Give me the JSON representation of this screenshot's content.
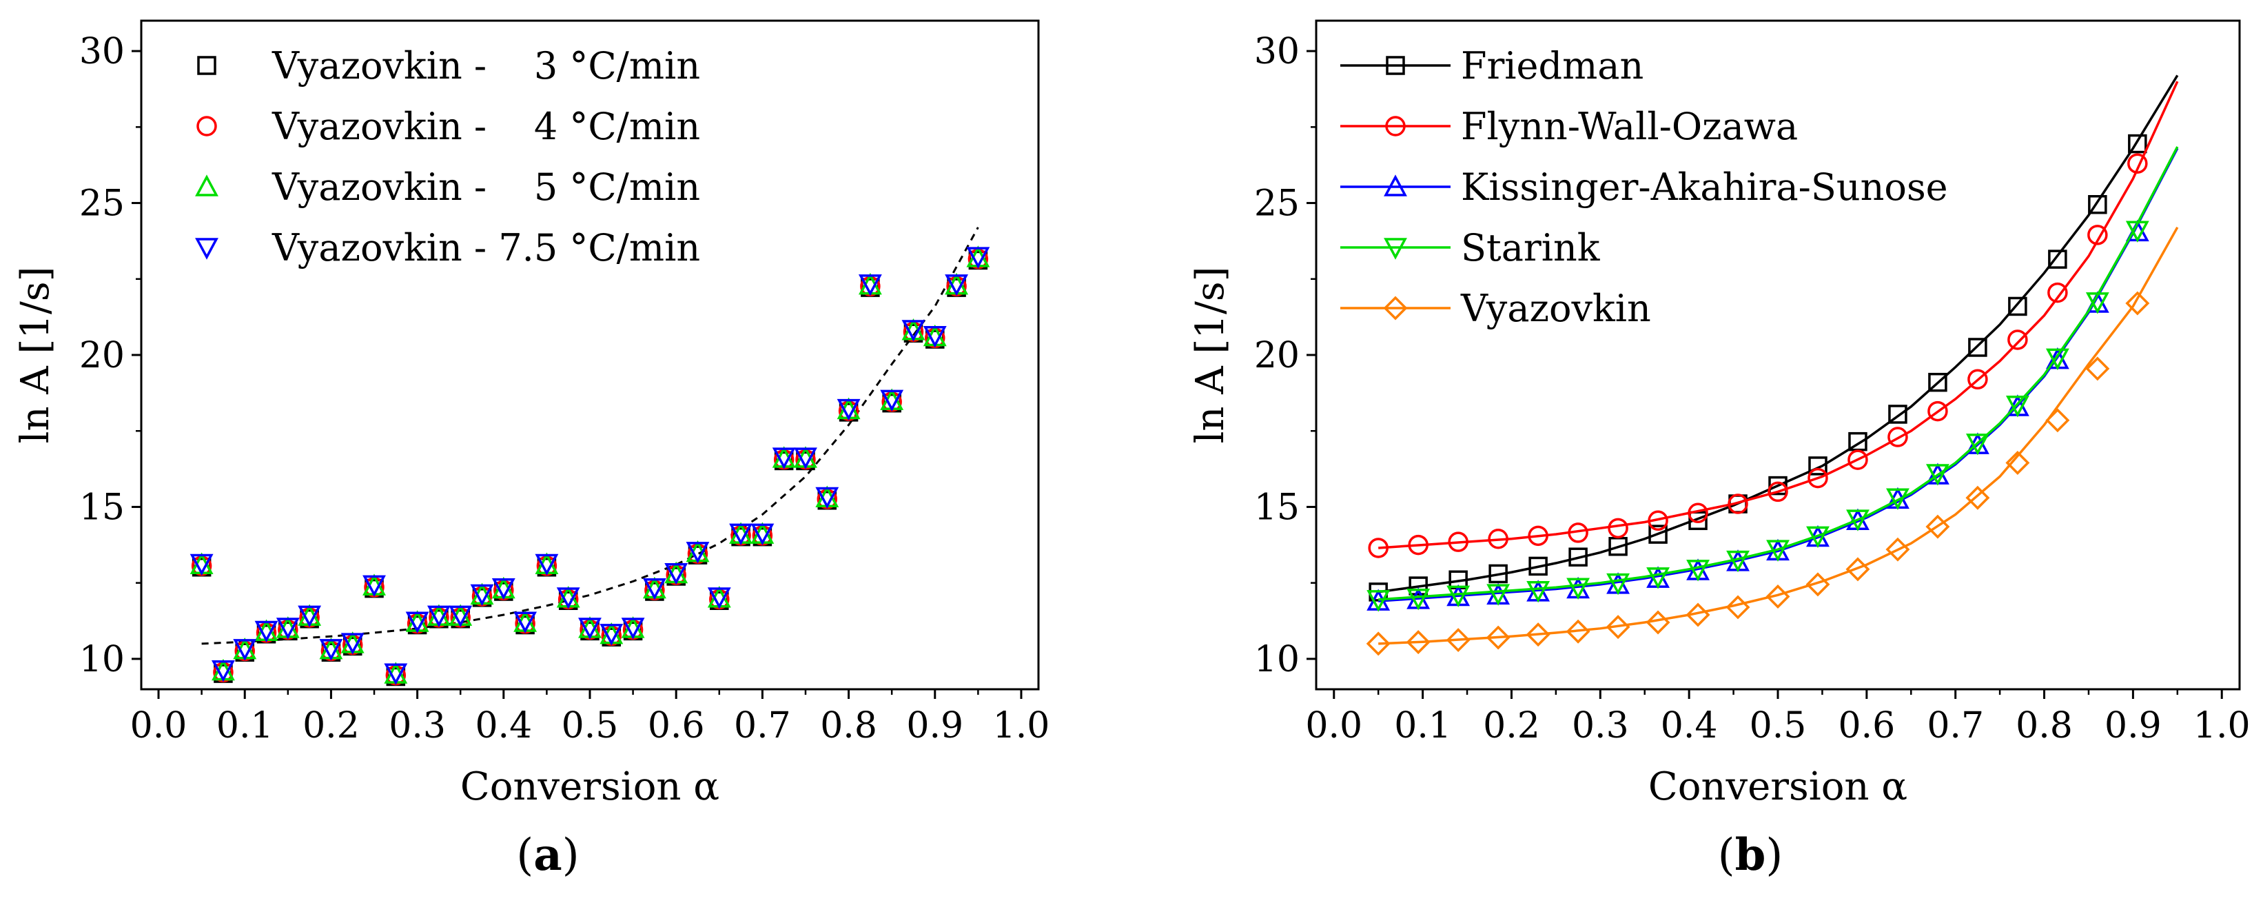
{
  "chart_data": [
    {
      "id": "a",
      "type": "scatter",
      "caption": "(a)",
      "caption_letter": "a",
      "xlabel": "Conversion α",
      "ylabel": "ln A [1/s]",
      "xlim": [
        -0.02,
        1.02
      ],
      "ylim": [
        9,
        31
      ],
      "xticks": [
        "0.0",
        "0.1",
        "0.2",
        "0.3",
        "0.4",
        "0.5",
        "0.6",
        "0.7",
        "0.8",
        "0.9",
        "1.0"
      ],
      "xtick_values": [
        0,
        0.1,
        0.2,
        0.3,
        0.4,
        0.5,
        0.6,
        0.7,
        0.8,
        0.9,
        1.0
      ],
      "yticks": [
        "10",
        "15",
        "20",
        "25",
        "30"
      ],
      "ytick_values": [
        10,
        15,
        20,
        25,
        30
      ],
      "x": [
        0.05,
        0.075,
        0.1,
        0.125,
        0.15,
        0.175,
        0.2,
        0.225,
        0.25,
        0.275,
        0.3,
        0.325,
        0.35,
        0.375,
        0.4,
        0.425,
        0.45,
        0.475,
        0.5,
        0.525,
        0.55,
        0.575,
        0.6,
        0.625,
        0.65,
        0.675,
        0.7,
        0.725,
        0.75,
        0.775,
        0.8,
        0.825,
        0.85,
        0.875,
        0.9,
        0.925,
        0.95
      ],
      "values": [
        13.1,
        9.6,
        10.3,
        10.9,
        11.0,
        11.4,
        10.3,
        10.5,
        12.4,
        9.5,
        11.2,
        11.4,
        11.4,
        12.1,
        12.3,
        11.2,
        13.1,
        12.0,
        11.0,
        10.8,
        11.0,
        12.3,
        12.8,
        13.5,
        12.0,
        14.1,
        14.1,
        16.6,
        16.6,
        15.3,
        18.2,
        22.3,
        18.5,
        20.8,
        20.6,
        22.3,
        23.2
      ],
      "series": [
        {
          "name": "Vyazovkin -    3 °C/min",
          "marker": "square",
          "color": "#000000",
          "offset": -0.08
        },
        {
          "name": "Vyazovkin -    4 °C/min",
          "marker": "circle",
          "color": "#ff0000",
          "offset": -0.04
        },
        {
          "name": "Vyazovkin -    5 °C/min",
          "marker": "triangle-up",
          "color": "#00dd00",
          "offset": 0.0
        },
        {
          "name": "Vyazovkin - 7.5 °C/min",
          "marker": "triangle-down",
          "color": "#0000ff",
          "offset": 0.04
        }
      ],
      "trend": {
        "style": "dashed",
        "color": "#000000",
        "x": [
          0.05,
          0.1,
          0.15,
          0.2,
          0.25,
          0.3,
          0.35,
          0.4,
          0.45,
          0.5,
          0.55,
          0.6,
          0.65,
          0.7,
          0.75,
          0.8,
          0.85,
          0.9,
          0.95
        ],
        "y": [
          10.5,
          10.56,
          10.65,
          10.74,
          10.86,
          11.0,
          11.2,
          11.45,
          11.75,
          12.1,
          12.55,
          13.1,
          13.8,
          14.75,
          16.0,
          17.7,
          19.7,
          21.6,
          24.2
        ]
      }
    },
    {
      "id": "b",
      "type": "line",
      "caption": "(b)",
      "caption_letter": "b",
      "xlabel": "Conversion α",
      "ylabel": "ln A [1/s]",
      "xlim": [
        -0.02,
        1.02
      ],
      "ylim": [
        9,
        31
      ],
      "xticks": [
        "0.0",
        "0.1",
        "0.2",
        "0.3",
        "0.4",
        "0.5",
        "0.6",
        "0.7",
        "0.8",
        "0.9",
        "1.0"
      ],
      "xtick_values": [
        0,
        0.1,
        0.2,
        0.3,
        0.4,
        0.5,
        0.6,
        0.7,
        0.8,
        0.9,
        1.0
      ],
      "yticks": [
        "10",
        "15",
        "20",
        "25",
        "30"
      ],
      "ytick_values": [
        10,
        15,
        20,
        25,
        30
      ],
      "marker_x": [
        0.05,
        0.095,
        0.14,
        0.185,
        0.23,
        0.275,
        0.32,
        0.365,
        0.41,
        0.455,
        0.5,
        0.545,
        0.59,
        0.635,
        0.68,
        0.725,
        0.77,
        0.815,
        0.86,
        0.905
      ],
      "series": [
        {
          "name": "Friedman",
          "marker": "square",
          "color": "#000000",
          "curve_x": [
            0.05,
            0.1,
            0.15,
            0.2,
            0.25,
            0.3,
            0.35,
            0.4,
            0.45,
            0.5,
            0.55,
            0.6,
            0.65,
            0.7,
            0.75,
            0.8,
            0.85,
            0.9,
            0.95
          ],
          "curve_y": [
            12.2,
            12.4,
            12.6,
            12.85,
            13.15,
            13.5,
            13.95,
            14.5,
            15.05,
            15.7,
            16.35,
            17.25,
            18.3,
            19.6,
            21.0,
            22.7,
            24.6,
            26.8,
            29.2
          ],
          "values": [
            12.2,
            12.4,
            12.6,
            12.8,
            13.05,
            13.35,
            13.7,
            14.1,
            14.55,
            15.1,
            15.7,
            16.35,
            17.15,
            18.05,
            19.1,
            20.25,
            21.6,
            23.15,
            24.95,
            26.95
          ]
        },
        {
          "name": "Flynn-Wall-Ozawa",
          "marker": "circle",
          "color": "#ff0000",
          "curve_x": [
            0.05,
            0.1,
            0.15,
            0.2,
            0.25,
            0.3,
            0.35,
            0.4,
            0.45,
            0.5,
            0.55,
            0.6,
            0.65,
            0.7,
            0.75,
            0.8,
            0.85,
            0.9,
            0.95
          ],
          "curve_y": [
            13.65,
            13.75,
            13.85,
            13.95,
            14.1,
            14.3,
            14.5,
            14.8,
            15.1,
            15.5,
            16.0,
            16.7,
            17.5,
            18.55,
            19.8,
            21.3,
            23.25,
            25.8,
            29.0
          ],
          "values": [
            13.65,
            13.75,
            13.85,
            13.95,
            14.05,
            14.15,
            14.3,
            14.55,
            14.8,
            15.1,
            15.5,
            15.95,
            16.55,
            17.3,
            18.15,
            19.2,
            20.5,
            22.05,
            23.95,
            26.3
          ]
        },
        {
          "name": "Kissinger-Akahira-Sunose",
          "marker": "triangle-up",
          "color": "#0000ff",
          "curve_x": [
            0.05,
            0.1,
            0.15,
            0.2,
            0.25,
            0.3,
            0.35,
            0.4,
            0.45,
            0.5,
            0.55,
            0.6,
            0.65,
            0.7,
            0.75,
            0.8,
            0.85,
            0.9,
            0.95
          ],
          "curve_y": [
            11.9,
            12.0,
            12.1,
            12.2,
            12.3,
            12.45,
            12.65,
            12.9,
            13.2,
            13.55,
            14.05,
            14.65,
            15.4,
            16.4,
            17.7,
            19.3,
            21.4,
            24.0,
            26.8
          ],
          "values": [
            11.9,
            11.95,
            12.05,
            12.1,
            12.2,
            12.3,
            12.45,
            12.65,
            12.9,
            13.2,
            13.55,
            14.0,
            14.55,
            15.25,
            16.05,
            17.05,
            18.3,
            19.85,
            21.7,
            24.05
          ]
        },
        {
          "name": "Starink",
          "marker": "triangle-down",
          "color": "#00dd00",
          "curve_x": [
            0.05,
            0.1,
            0.15,
            0.2,
            0.25,
            0.3,
            0.35,
            0.4,
            0.45,
            0.5,
            0.55,
            0.6,
            0.65,
            0.7,
            0.75,
            0.8,
            0.85,
            0.9,
            0.95
          ],
          "curve_y": [
            11.95,
            12.05,
            12.15,
            12.25,
            12.35,
            12.5,
            12.7,
            12.95,
            13.25,
            13.6,
            14.1,
            14.7,
            15.45,
            16.45,
            17.75,
            19.35,
            21.45,
            24.05,
            26.85
          ],
          "values": [
            11.95,
            12.0,
            12.1,
            12.15,
            12.25,
            12.35,
            12.5,
            12.7,
            12.95,
            13.25,
            13.6,
            14.05,
            14.6,
            15.3,
            16.1,
            17.1,
            18.35,
            19.9,
            21.75,
            24.1
          ]
        },
        {
          "name": "Vyazovkin",
          "marker": "diamond",
          "color": "#ff8000",
          "curve_x": [
            0.05,
            0.1,
            0.15,
            0.2,
            0.25,
            0.3,
            0.35,
            0.4,
            0.45,
            0.5,
            0.55,
            0.6,
            0.65,
            0.7,
            0.75,
            0.8,
            0.85,
            0.9,
            0.95
          ],
          "curve_y": [
            10.5,
            10.56,
            10.65,
            10.74,
            10.86,
            11.0,
            11.2,
            11.45,
            11.75,
            12.1,
            12.55,
            13.1,
            13.8,
            14.75,
            16.0,
            17.7,
            19.7,
            21.6,
            24.2
          ],
          "values": [
            10.5,
            10.55,
            10.62,
            10.7,
            10.8,
            10.9,
            11.05,
            11.2,
            11.45,
            11.7,
            12.05,
            12.45,
            12.95,
            13.6,
            14.35,
            15.3,
            16.45,
            17.85,
            19.55,
            21.7
          ]
        }
      ]
    }
  ]
}
